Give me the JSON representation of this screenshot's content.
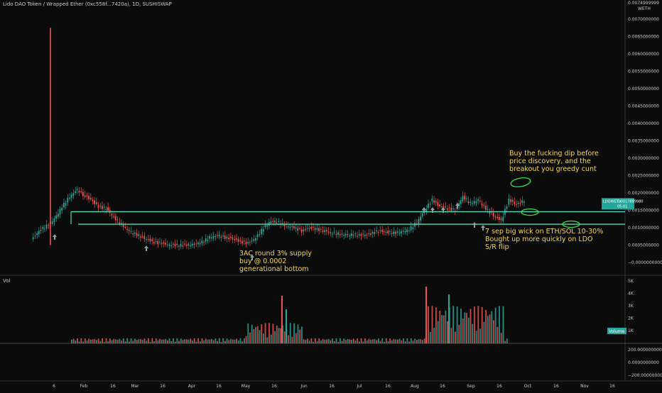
{
  "header": {
    "title": "Lido DAO Token / Wrapped Ether (0xc558f...7420a), 1D, SUSHISWAP"
  },
  "price_axis": {
    "ticks": [
      "0.0070000000",
      "0.0065000000",
      "0.0060000000",
      "0.0055000000",
      "0.0050000000",
      "0.0045000000",
      "0.0040000000",
      "0.0035000000",
      "0.0030000000",
      "0.0025000000",
      "0.0020000000",
      "0.0015000000",
      "0.0010000000",
      "0.0005000000",
      "−0.0000000000"
    ],
    "top_label": "0.0074999999",
    "unit_label": "WETH",
    "last_tag": "LDOWETH",
    "last_price": "0.0017899980",
    "last_countdown": "05:01"
  },
  "volume_axis": {
    "ticks": [
      "5K",
      "4K",
      "3K",
      "2K",
      "1K"
    ],
    "tag": "Volume",
    "label": "Vol"
  },
  "indicator_axis": {
    "ticks": [
      "200.0000000000",
      "0.0000000000",
      "−200.0000000000"
    ]
  },
  "time_axis": {
    "ticks": [
      "6",
      "Feb",
      "16",
      "Mar",
      "16",
      "Apr",
      "16",
      "May",
      "16",
      "Jun",
      "16",
      "Jul",
      "16",
      "Aug",
      "16",
      "Sep",
      "16",
      "Oct",
      "16",
      "Nov",
      "16"
    ]
  },
  "annotations": [
    {
      "id": "ann-buy-dip",
      "text": "Buy the fucking dip before\nprice discovery, and the\nbreakout you greedy cunt"
    },
    {
      "id": "ann-7sep",
      "text": "7 sep big wick on ETH/SOL 10-30%\nBought up more quickly on LDO\nS/R flip"
    },
    {
      "id": "ann-3ac",
      "text": "3AC round 3% supply\nbuy @ 0.0002\ngenerational bottom"
    }
  ],
  "colors": {
    "up": "#26a69a",
    "down": "#ef5350",
    "level": "#4fd8b8",
    "annotation": "#f5d94b",
    "circle": "#38e04a",
    "background": "#0b0b0b",
    "axis_text": "#c8c8c8"
  },
  "chart_data": {
    "type": "candlestick",
    "symbol": "LDOWETH",
    "interval": "1D",
    "exchange": "SUSHISWAP",
    "ylim": [
      0,
      0.0075
    ],
    "support_resistance_levels": [
      0.00146,
      0.0011
    ],
    "close_series": [
      [
        "Jan 06",
        0.00065
      ],
      [
        "Jan 10",
        0.0009
      ],
      [
        "Jan 14",
        0.00105
      ],
      [
        "Jan 18",
        0.00125
      ],
      [
        "Jan 22",
        0.0016
      ],
      [
        "Jan 26",
        0.0019
      ],
      [
        "Jan 30",
        0.0021
      ],
      [
        "Feb 02",
        0.00195
      ],
      [
        "Feb 06",
        0.0018
      ],
      [
        "Feb 10",
        0.0016
      ],
      [
        "Feb 14",
        0.00155
      ],
      [
        "Feb 18",
        0.0013
      ],
      [
        "Feb 22",
        0.0011
      ],
      [
        "Feb 26",
        0.0009
      ],
      [
        "Mar 02",
        0.0008
      ],
      [
        "Mar 06",
        0.0007
      ],
      [
        "Mar 10",
        0.0006
      ],
      [
        "Mar 14",
        0.00055
      ],
      [
        "Mar 20",
        0.0005
      ],
      [
        "Mar 26",
        0.0005
      ],
      [
        "Apr 01",
        0.00052
      ],
      [
        "Apr 05",
        0.0006
      ],
      [
        "Apr 09",
        0.00072
      ],
      [
        "Apr 13",
        0.00078
      ],
      [
        "Apr 17",
        0.00072
      ],
      [
        "Apr 21",
        0.00068
      ],
      [
        "Apr 25",
        0.0006
      ],
      [
        "Apr 29",
        0.00055
      ],
      [
        "May 03",
        0.0007
      ],
      [
        "May 07",
        0.001
      ],
      [
        "May 11",
        0.0012
      ],
      [
        "May 15",
        0.00115
      ],
      [
        "May 19",
        0.00105
      ],
      [
        "May 23",
        0.001
      ],
      [
        "May 27",
        0.0009
      ],
      [
        "May 31",
        0.001
      ],
      [
        "Jun 04",
        0.00095
      ],
      [
        "Jun 08",
        0.0009
      ],
      [
        "Jun 12",
        0.00085
      ],
      [
        "Jun 16",
        0.00082
      ],
      [
        "Jun 20",
        0.0008
      ],
      [
        "Jun 24",
        0.0008
      ],
      [
        "Jun 28",
        0.00078
      ],
      [
        "Jul 02",
        0.00082
      ],
      [
        "Jul 06",
        0.0009
      ],
      [
        "Jul 10",
        0.00088
      ],
      [
        "Jul 14",
        0.00085
      ],
      [
        "Jul 18",
        0.00088
      ],
      [
        "Jul 22",
        0.00095
      ],
      [
        "Jul 26",
        0.00115
      ],
      [
        "Jul 30",
        0.0015
      ],
      [
        "Aug 03",
        0.0018
      ],
      [
        "Aug 07",
        0.0016
      ],
      [
        "Aug 11",
        0.00155
      ],
      [
        "Aug 15",
        0.0015
      ],
      [
        "Aug 19",
        0.0019
      ],
      [
        "Aug 23",
        0.0017
      ],
      [
        "Aug 27",
        0.0018
      ],
      [
        "Aug 31",
        0.00155
      ],
      [
        "Sep 04",
        0.00135
      ],
      [
        "Sep 08",
        0.0012
      ],
      [
        "Sep 12",
        0.0018
      ],
      [
        "Sep 16",
        0.00165
      ],
      [
        "Sep 20",
        0.00179
      ]
    ],
    "spike": {
      "date": "Jan 06",
      "high": 0.00675
    },
    "volume": [
      [
        "Jan",
        200
      ],
      [
        "Feb",
        800
      ],
      [
        "Feb 16",
        500
      ],
      [
        "Mar",
        300
      ],
      [
        "Mar 16",
        250
      ],
      [
        "Apr",
        400
      ],
      [
        "Apr 16",
        900
      ],
      [
        "May",
        1500
      ],
      [
        "May 10",
        4200
      ],
      [
        "May 16",
        1200
      ],
      [
        "Jun",
        800
      ],
      [
        "Jun 16",
        600
      ],
      [
        "Jul",
        500
      ],
      [
        "Jul 16",
        700
      ],
      [
        "Aug",
        3000
      ],
      [
        "Aug 10",
        5000
      ],
      [
        "Aug 16",
        2800
      ],
      [
        "Sep",
        2500
      ],
      [
        "Sep 16",
        1300
      ]
    ],
    "volume_ylim": [
      0,
      5500
    ],
    "xlabel": "",
    "ylabel": ""
  }
}
